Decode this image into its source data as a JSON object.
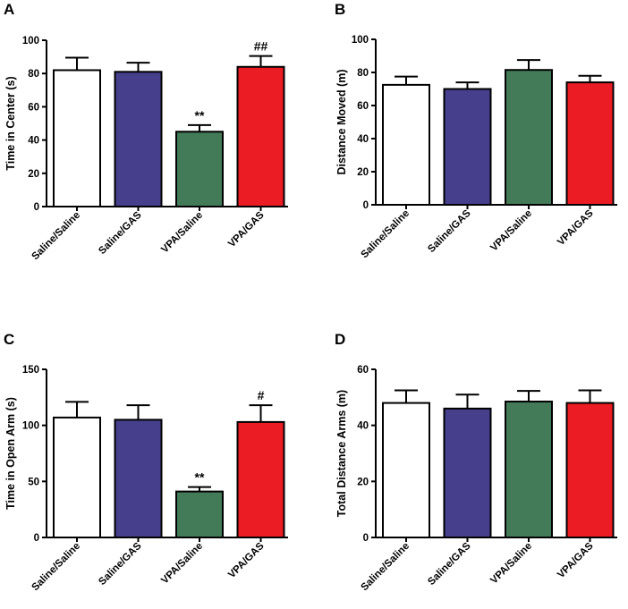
{
  "colors": {
    "saline_saline": "#ffffff",
    "saline_gas": "#463f8c",
    "vpa_saline": "#437b58",
    "vpa_gas": "#eb1c24",
    "outline": "#000000"
  },
  "chart_data": [
    {
      "panel": "A",
      "type": "bar",
      "ylabel": "Time in Center (s)",
      "ylim": [
        0,
        100
      ],
      "yticks": [
        0,
        20,
        40,
        60,
        80,
        100
      ],
      "categories": [
        "Saline/Saline",
        "Saline/GAS",
        "VPA/Saline",
        "VPA/GAS"
      ],
      "values": [
        82,
        81,
        45,
        84
      ],
      "errors": [
        7.5,
        5.5,
        4,
        6.5
      ],
      "annotations": [
        "",
        "",
        "**",
        "##"
      ]
    },
    {
      "panel": "B",
      "type": "bar",
      "ylabel": "Distance Moved (m)",
      "ylim": [
        0,
        100
      ],
      "yticks": [
        0,
        20,
        40,
        60,
        80,
        100
      ],
      "categories": [
        "Saline/Saline",
        "Saline/GAS",
        "VPA/Saline",
        "VPA/GAS"
      ],
      "values": [
        72.5,
        70,
        81.5,
        74
      ],
      "errors": [
        5,
        4,
        6,
        4
      ],
      "annotations": [
        "",
        "",
        "",
        ""
      ]
    },
    {
      "panel": "C",
      "type": "bar",
      "ylabel": "Time in Open Arm (s)",
      "ylim": [
        0,
        150
      ],
      "yticks": [
        0,
        50,
        100,
        150
      ],
      "categories": [
        "Saline/Saline",
        "Saline/GAS",
        "VPA/Saline",
        "VPA/GAS"
      ],
      "values": [
        107,
        105,
        41,
        103
      ],
      "errors": [
        14,
        13,
        4,
        15
      ],
      "annotations": [
        "",
        "",
        "**",
        "#"
      ]
    },
    {
      "panel": "D",
      "type": "bar",
      "ylabel": "Total Distance Arms (m)",
      "ylim": [
        0,
        60
      ],
      "yticks": [
        0,
        20,
        40,
        60
      ],
      "categories": [
        "Saline/Saline",
        "Saline/GAS",
        "VPA/Saline",
        "VPA/GAS"
      ],
      "values": [
        48,
        46,
        48.5,
        48
      ],
      "errors": [
        4.5,
        5,
        3.8,
        4.5
      ],
      "annotations": [
        "",
        "",
        "",
        ""
      ]
    }
  ]
}
